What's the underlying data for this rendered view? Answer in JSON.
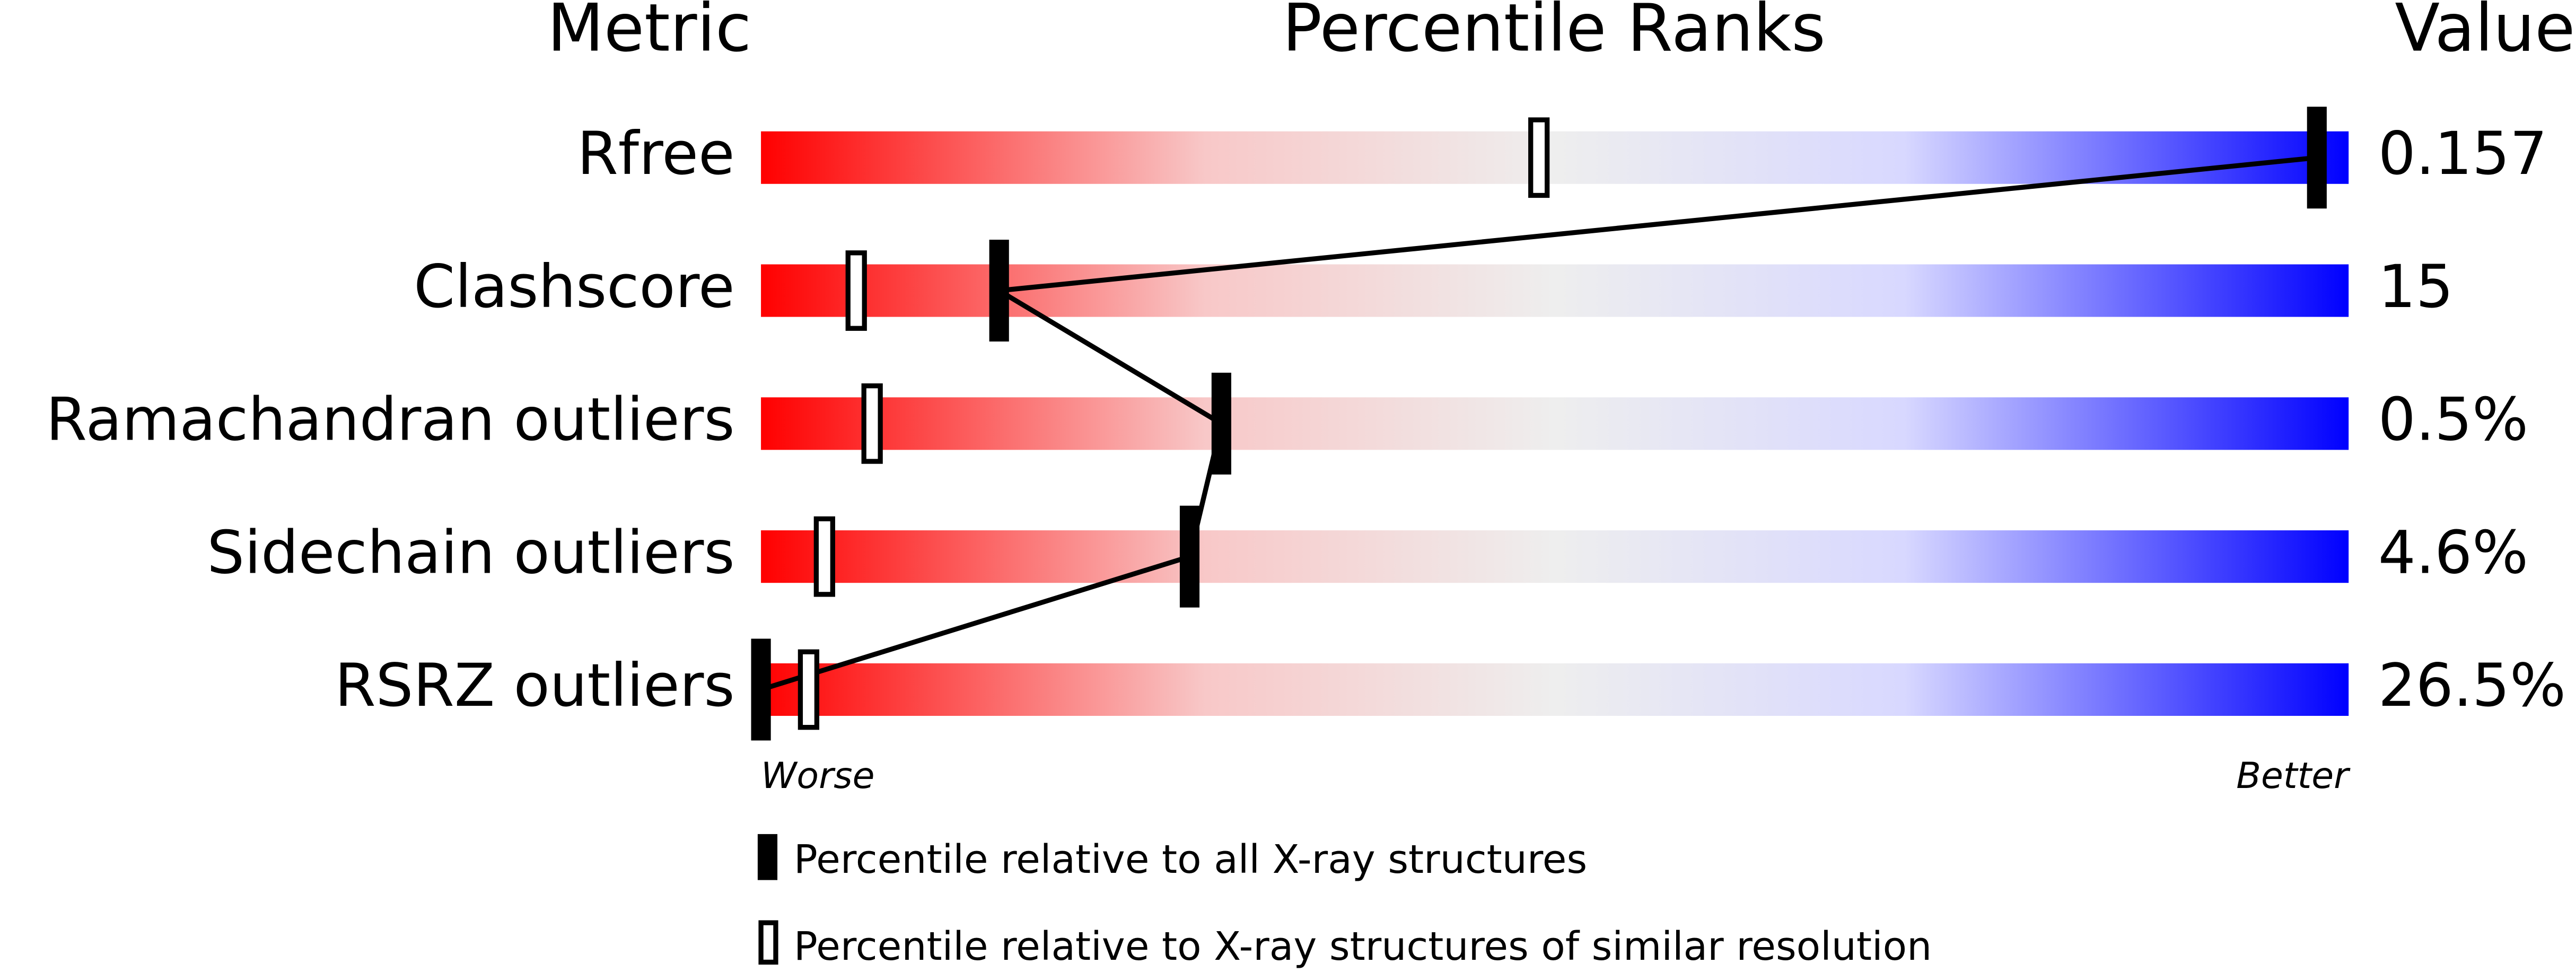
{
  "chart_data": {
    "type": "percentile",
    "headers": [
      "Metric",
      "Percentile Ranks",
      "Value"
    ],
    "categories": [
      "Rfree",
      "Clashscore",
      "Ramachandran outliers",
      "Sidechain outliers",
      "RSRZ outliers"
    ],
    "metric_values": [
      "0.157",
      "15",
      "0.5%",
      "4.6%",
      "26.5%"
    ],
    "series": [
      {
        "name": "Percentile relative to all X-ray structures",
        "color": "#000000",
        "values": [
          98,
          15,
          29,
          27,
          0
        ]
      },
      {
        "name": "Percentile relative to X-ray structures of similar resolution",
        "color": "#000000",
        "values": [
          49,
          6,
          7,
          4,
          3
        ]
      }
    ],
    "xlim": [
      0,
      100
    ],
    "axis_labels": [
      "Worse",
      "Better"
    ]
  }
}
